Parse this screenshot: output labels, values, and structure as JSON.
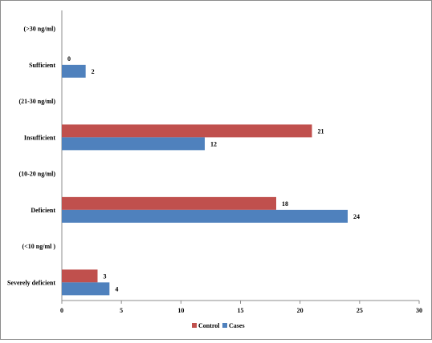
{
  "chart_data": {
    "type": "bar",
    "orientation": "horizontal",
    "categories": [
      "(>30 ng/ml)",
      "Sufficient",
      "(21-30 ng/ml)",
      "Insufficient",
      "(10-20 ng/ml)",
      "Deficient",
      "(<10 ng/ml )",
      "Severely deficient"
    ],
    "series": [
      {
        "name": "Control",
        "color": "#c0504d",
        "values": [
          null,
          0,
          null,
          21,
          null,
          18,
          null,
          3
        ]
      },
      {
        "name": "Cases",
        "color": "#4f81bd",
        "values": [
          null,
          2,
          null,
          12,
          null,
          24,
          null,
          4
        ]
      }
    ],
    "xlim": [
      0,
      30
    ],
    "xticks": [
      "0",
      "5",
      "10",
      "15",
      "20",
      "25",
      "30"
    ],
    "title": "",
    "xlabel": "",
    "ylabel": "",
    "grid": false,
    "legend_position": "bottom"
  }
}
